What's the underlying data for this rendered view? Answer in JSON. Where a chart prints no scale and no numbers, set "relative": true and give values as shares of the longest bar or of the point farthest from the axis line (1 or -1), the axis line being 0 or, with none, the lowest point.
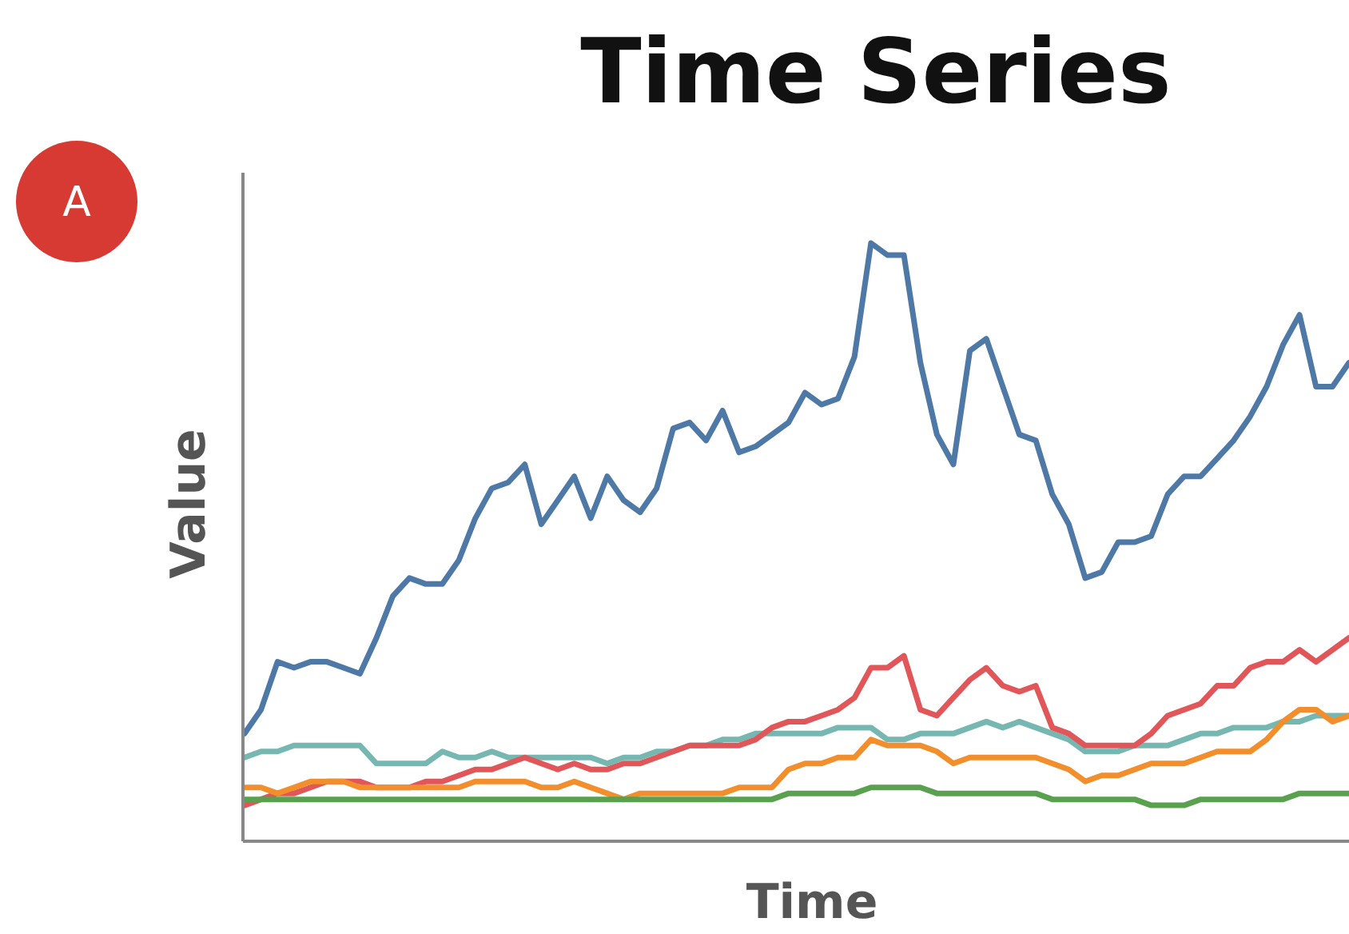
{
  "chart_data": {
    "type": "line",
    "title": "Time Series",
    "xlabel": "Time",
    "ylabel": "Value",
    "annotations": [
      "A"
    ],
    "relative": true,
    "line_style": "solid",
    "categories": [
      null,
      null,
      null,
      null,
      null,
      null,
      null,
      null,
      null,
      null,
      null,
      null,
      null,
      null,
      null,
      null,
      null,
      null,
      null,
      null,
      null,
      null,
      null,
      null,
      null,
      null,
      null,
      null,
      null,
      null,
      null,
      null,
      null,
      null,
      null,
      null,
      null,
      null,
      null,
      null,
      null,
      null,
      null,
      null,
      null,
      null,
      null,
      null,
      null,
      null,
      null,
      null,
      null,
      null,
      null,
      null,
      null,
      null,
      null,
      null,
      null,
      null,
      null,
      null,
      null,
      null,
      null,
      null
    ],
    "series": [
      {
        "color": "#4e79a7",
        "values": [
          0.18,
          0.22,
          0.3,
          0.29,
          0.3,
          0.3,
          0.29,
          0.28,
          0.34,
          0.41,
          0.44,
          0.43,
          0.43,
          0.47,
          0.54,
          0.59,
          0.6,
          0.63,
          0.53,
          0.57,
          0.61,
          0.54,
          0.61,
          0.57,
          0.55,
          0.59,
          0.69,
          0.7,
          0.67,
          0.72,
          0.65,
          0.66,
          0.68,
          0.7,
          0.75,
          0.73,
          0.74,
          0.81,
          1,
          0.98,
          0.98,
          0.8,
          0.68,
          0.63,
          0.82,
          0.84,
          0.76,
          0.68,
          0.67,
          0.58,
          0.53,
          0.44,
          0.45,
          0.5,
          0.5,
          0.51,
          0.58,
          0.61,
          0.61,
          0.64,
          0.67,
          0.71,
          0.76,
          0.83,
          0.88,
          0.76,
          0.76,
          0.8
        ]
      },
      {
        "color": "#76b7b2",
        "values": [
          0.14,
          0.15,
          0.15,
          0.16,
          0.16,
          0.16,
          0.16,
          0.16,
          0.13,
          0.13,
          0.13,
          0.13,
          0.15,
          0.14,
          0.14,
          0.15,
          0.14,
          0.14,
          0.14,
          0.14,
          0.14,
          0.14,
          0.13,
          0.14,
          0.14,
          0.15,
          0.15,
          0.16,
          0.16,
          0.17,
          0.17,
          0.18,
          0.18,
          0.18,
          0.18,
          0.18,
          0.19,
          0.19,
          0.19,
          0.17,
          0.17,
          0.18,
          0.18,
          0.18,
          0.19,
          0.2,
          0.19,
          0.2,
          0.19,
          0.18,
          0.17,
          0.15,
          0.15,
          0.15,
          0.16,
          0.16,
          0.16,
          0.17,
          0.18,
          0.18,
          0.19,
          0.19,
          0.19,
          0.2,
          0.2,
          0.21,
          0.21,
          0.21
        ]
      },
      {
        "color": "#e15759",
        "values": [
          0.06,
          0.07,
          0.08,
          0.08,
          0.09,
          0.1,
          0.1,
          0.1,
          0.09,
          0.09,
          0.09,
          0.1,
          0.1,
          0.11,
          0.12,
          0.12,
          0.13,
          0.14,
          0.13,
          0.12,
          0.13,
          0.12,
          0.12,
          0.13,
          0.13,
          0.14,
          0.15,
          0.16,
          0.16,
          0.16,
          0.16,
          0.17,
          0.19,
          0.2,
          0.2,
          0.21,
          0.22,
          0.24,
          0.29,
          0.29,
          0.31,
          0.22,
          0.21,
          0.24,
          0.27,
          0.29,
          0.26,
          0.25,
          0.26,
          0.19,
          0.18,
          0.16,
          0.16,
          0.16,
          0.16,
          0.18,
          0.21,
          0.22,
          0.23,
          0.26,
          0.26,
          0.29,
          0.3,
          0.3,
          0.32,
          0.3,
          0.32,
          0.34
        ]
      },
      {
        "color": "#f28e2b",
        "values": [
          0.09,
          0.09,
          0.08,
          0.09,
          0.1,
          0.1,
          0.1,
          0.09,
          0.09,
          0.09,
          0.09,
          0.09,
          0.09,
          0.09,
          0.1,
          0.1,
          0.1,
          0.1,
          0.09,
          0.09,
          0.1,
          0.09,
          0.08,
          0.07,
          0.08,
          0.08,
          0.08,
          0.08,
          0.08,
          0.08,
          0.09,
          0.09,
          0.09,
          0.12,
          0.13,
          0.13,
          0.14,
          0.14,
          0.17,
          0.16,
          0.16,
          0.16,
          0.15,
          0.13,
          0.14,
          0.14,
          0.14,
          0.14,
          0.14,
          0.13,
          0.12,
          0.1,
          0.11,
          0.11,
          0.12,
          0.13,
          0.13,
          0.13,
          0.14,
          0.15,
          0.15,
          0.15,
          0.17,
          0.2,
          0.22,
          0.22,
          0.2,
          0.21
        ]
      },
      {
        "color": "#59a14f",
        "values": [
          0.07,
          0.07,
          0.07,
          0.07,
          0.07,
          0.07,
          0.07,
          0.07,
          0.07,
          0.07,
          0.07,
          0.07,
          0.07,
          0.07,
          0.07,
          0.07,
          0.07,
          0.07,
          0.07,
          0.07,
          0.07,
          0.07,
          0.07,
          0.07,
          0.07,
          0.07,
          0.07,
          0.07,
          0.07,
          0.07,
          0.07,
          0.07,
          0.07,
          0.08,
          0.08,
          0.08,
          0.08,
          0.08,
          0.09,
          0.09,
          0.09,
          0.09,
          0.08,
          0.08,
          0.08,
          0.08,
          0.08,
          0.08,
          0.08,
          0.07,
          0.07,
          0.07,
          0.07,
          0.07,
          0.07,
          0.06,
          0.06,
          0.06,
          0.07,
          0.07,
          0.07,
          0.07,
          0.07,
          0.07,
          0.08,
          0.08,
          0.08,
          0.08
        ]
      }
    ]
  }
}
